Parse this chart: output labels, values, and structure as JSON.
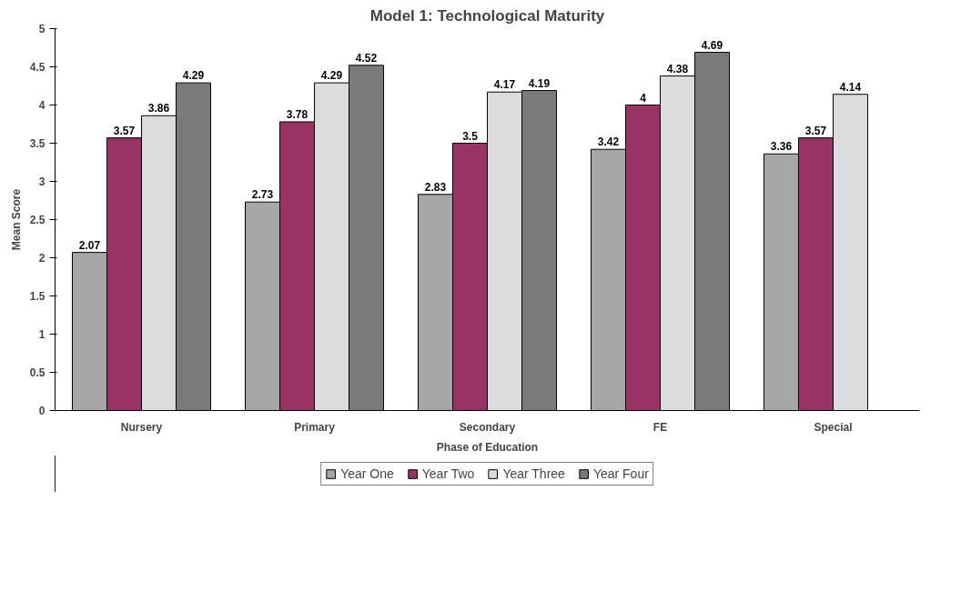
{
  "chart_data": {
    "type": "bar",
    "title": "Model 1: Technological Maturity",
    "xlabel": "Phase of Education",
    "ylabel": "Mean Score",
    "categories": [
      "Nursery",
      "Primary",
      "Secondary",
      "FE",
      "Special"
    ],
    "series": [
      {
        "name": "Year One",
        "color": "#a6a6a6",
        "values": [
          2.07,
          2.73,
          2.83,
          3.42,
          3.36
        ]
      },
      {
        "name": "Year Two",
        "color": "#993366",
        "values": [
          3.57,
          3.78,
          3.5,
          4,
          3.57
        ]
      },
      {
        "name": "Year Three",
        "color": "#dcdcdc",
        "values": [
          3.86,
          4.29,
          4.17,
          4.38,
          4.14
        ]
      },
      {
        "name": "Year Four",
        "color": "#7a7a7a",
        "values": [
          4.29,
          4.52,
          4.19,
          4.69,
          null
        ]
      }
    ],
    "ylim": [
      0,
      5
    ],
    "yticks": [
      0,
      0.5,
      1,
      1.5,
      2,
      2.5,
      3,
      3.5,
      4,
      4.5,
      5
    ],
    "grid": false,
    "legend": "bottom",
    "data_labels": true
  }
}
